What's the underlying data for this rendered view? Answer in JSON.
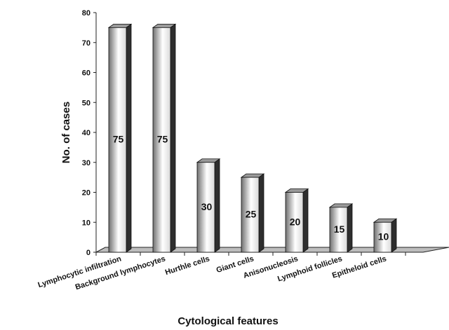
{
  "chart_data": {
    "type": "bar",
    "title": "",
    "xlabel": "Cytological features",
    "ylabel": "No. of cases",
    "ylim": [
      0,
      80
    ],
    "yticks": [
      0,
      10,
      20,
      30,
      40,
      50,
      60,
      70,
      80
    ],
    "grid": false,
    "categories": [
      "Lymphocytic infiltration",
      "Background lymphocytes",
      "Hurthle cells",
      "Giant cells",
      "Anisonucleosis",
      "Lymphoid follicles",
      "Epitheloid cells"
    ],
    "values": [
      75,
      75,
      30,
      25,
      20,
      15,
      10
    ],
    "bar_style": "3d-cylinder-grayscale"
  }
}
